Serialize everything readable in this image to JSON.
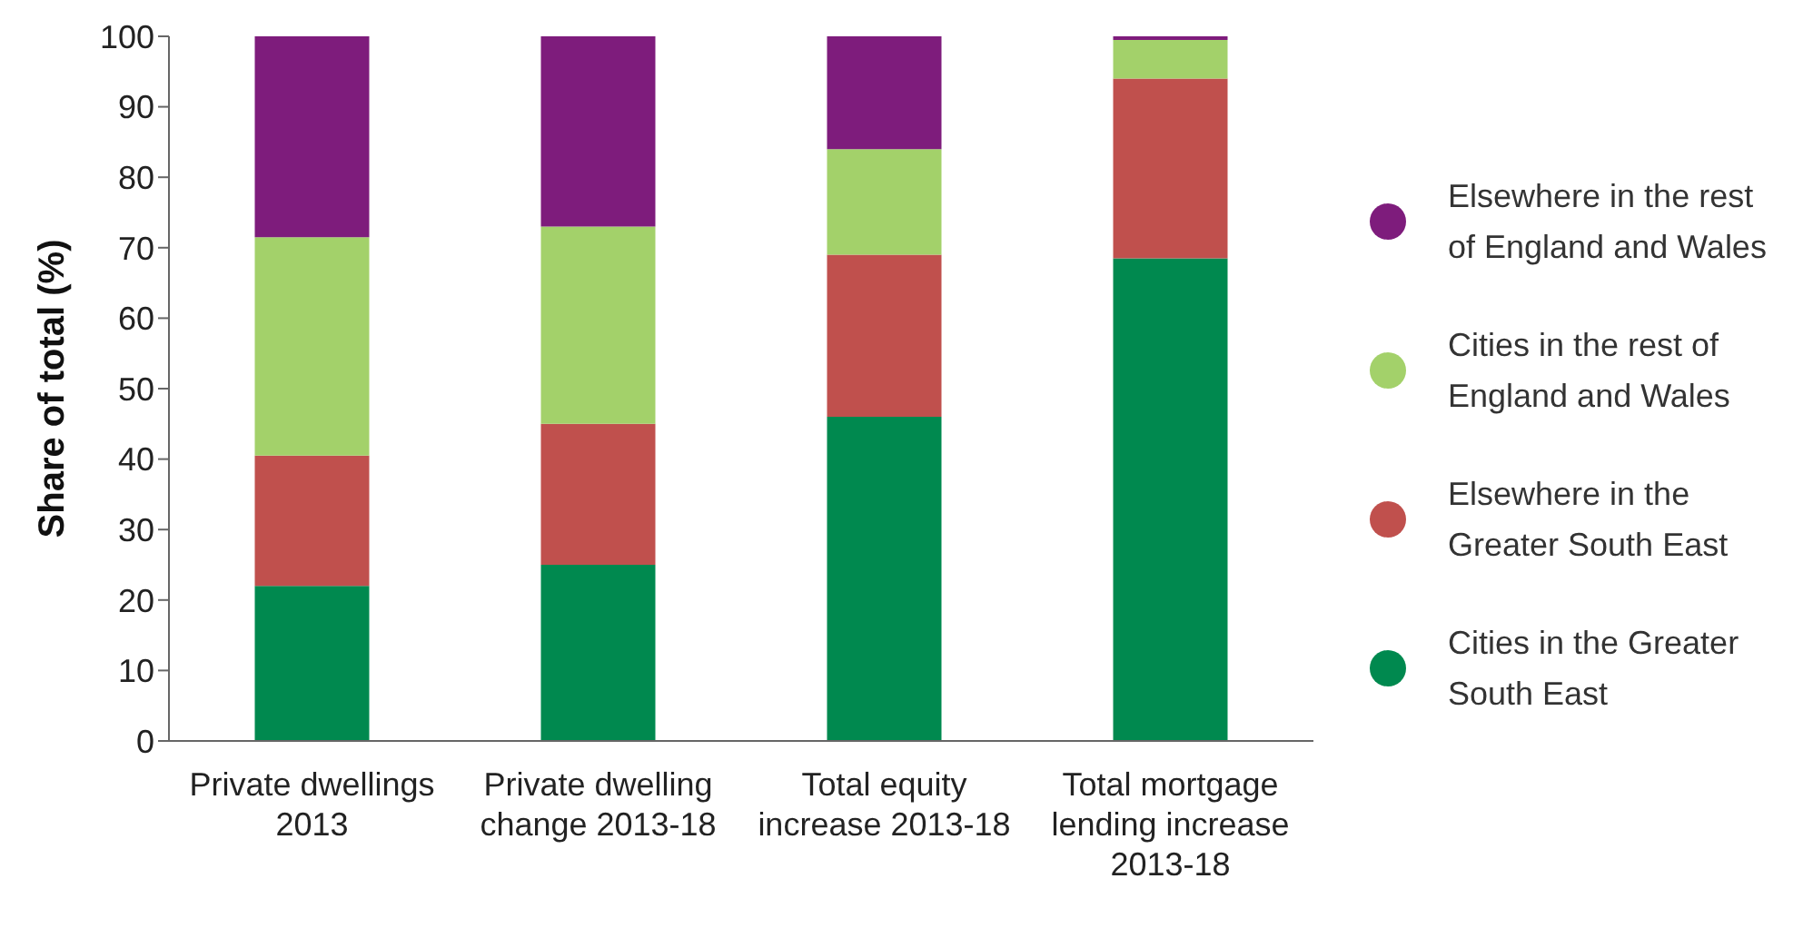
{
  "chart_data": {
    "type": "bar",
    "stacked": true,
    "ylabel": "Share of total (%)",
    "categories": [
      "Private dwellings 2013",
      "Private dwelling change 2013-18",
      "Total equity increase 2013-18",
      "Total mortgage lending increase 2013-18"
    ],
    "series": [
      {
        "name": "Cities in the Greater South East",
        "color": "#00894f",
        "values": [
          22,
          25,
          46,
          68.5
        ]
      },
      {
        "name": "Elsewhere in the Greater South East",
        "color": "#c0504d",
        "values": [
          18.5,
          20,
          23,
          25.5
        ]
      },
      {
        "name": "Cities in the rest of England and Wales",
        "color": "#a3d16a",
        "values": [
          31,
          28,
          15,
          5.5
        ]
      },
      {
        "name": "Elsewhere in the rest of England and Wales",
        "color": "#7e1c7c",
        "values": [
          28.5,
          27,
          16,
          0.5
        ]
      }
    ],
    "ylim": [
      0,
      100
    ],
    "yticks": [
      0,
      10,
      20,
      30,
      40,
      50,
      60,
      70,
      80,
      90,
      100
    ],
    "grid": false,
    "legend": "right"
  }
}
